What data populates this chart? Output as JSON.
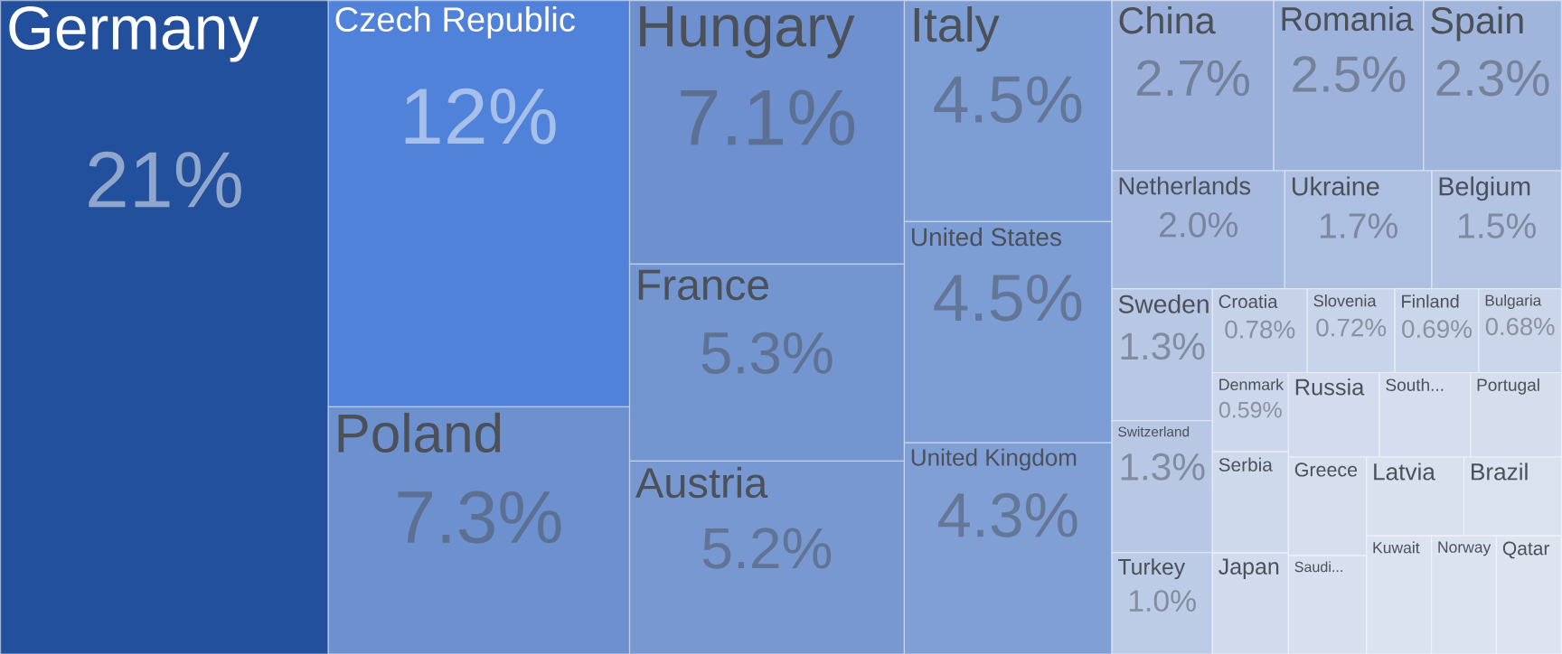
{
  "chart_data": {
    "type": "other",
    "categories": [
      "Germany",
      "Czech Republic",
      "Poland",
      "Hungary",
      "France",
      "Austria",
      "Italy",
      "United States",
      "United Kingdom",
      "China",
      "Romania",
      "Spain",
      "Netherlands",
      "Ukraine",
      "Belgium",
      "Sweden",
      "Switzerland",
      "Turkey",
      "Croatia",
      "Slovenia",
      "Finland",
      "Bulgaria",
      "Denmark",
      "Serbia",
      "Japan",
      "Russia",
      "South...",
      "Portugal",
      "Greece",
      "Saudi...",
      "Latvia",
      "Brazil",
      "Kuwait",
      "Norway",
      "Qatar"
    ],
    "values": [
      21,
      12,
      7.3,
      7.1,
      5.3,
      5.2,
      4.5,
      4.5,
      4.3,
      2.7,
      2.5,
      2.3,
      2.0,
      1.7,
      1.5,
      1.3,
      1.3,
      1.0,
      0.78,
      0.72,
      0.69,
      0.68,
      0.59,
      null,
      null,
      null,
      null,
      null,
      null,
      null,
      null,
      null,
      null,
      null,
      null
    ],
    "value_labels": [
      "21%",
      "12%",
      "7.3%",
      "7.1%",
      "5.3%",
      "5.2%",
      "4.5%",
      "4.5%",
      "4.3%",
      "2.7%",
      "2.5%",
      "2.3%",
      "2.0%",
      "1.7%",
      "1.5%",
      "1.3%",
      "1.3%",
      "1.0%",
      "0.78%",
      "0.72%",
      "0.69%",
      "0.68%",
      "0.59%",
      null,
      null,
      null,
      null,
      null,
      null,
      null,
      null,
      null,
      null,
      null,
      null
    ],
    "colors": [
      "#22509c",
      "#4f82d8",
      "#6d90cf",
      "#6e90cf",
      "#7395d0",
      "#7898d2",
      "#7d9dd5",
      "#7d9dd5",
      "#809fd5",
      "#9ab0da",
      "#9db3db",
      "#a0b5dc",
      "#a6badf",
      "#adc0e1",
      "#b3c4e3",
      "#b8c8e4",
      "#b8c8e4",
      "#bccbe6",
      "#c6d2e8",
      "#c8d4e9",
      "#cad6ea",
      "#cbd6ea",
      "#ccd7eb",
      "#cfd9ec",
      "#d2dbed",
      "#d3dcee",
      "#d5ddee",
      "#d6deee",
      "#d7dfef",
      "#d8e0ef",
      "#d9e1ef",
      "#dae2f0",
      "#dbe2f0",
      "#dce3f0",
      "#dde4f0"
    ]
  }
}
